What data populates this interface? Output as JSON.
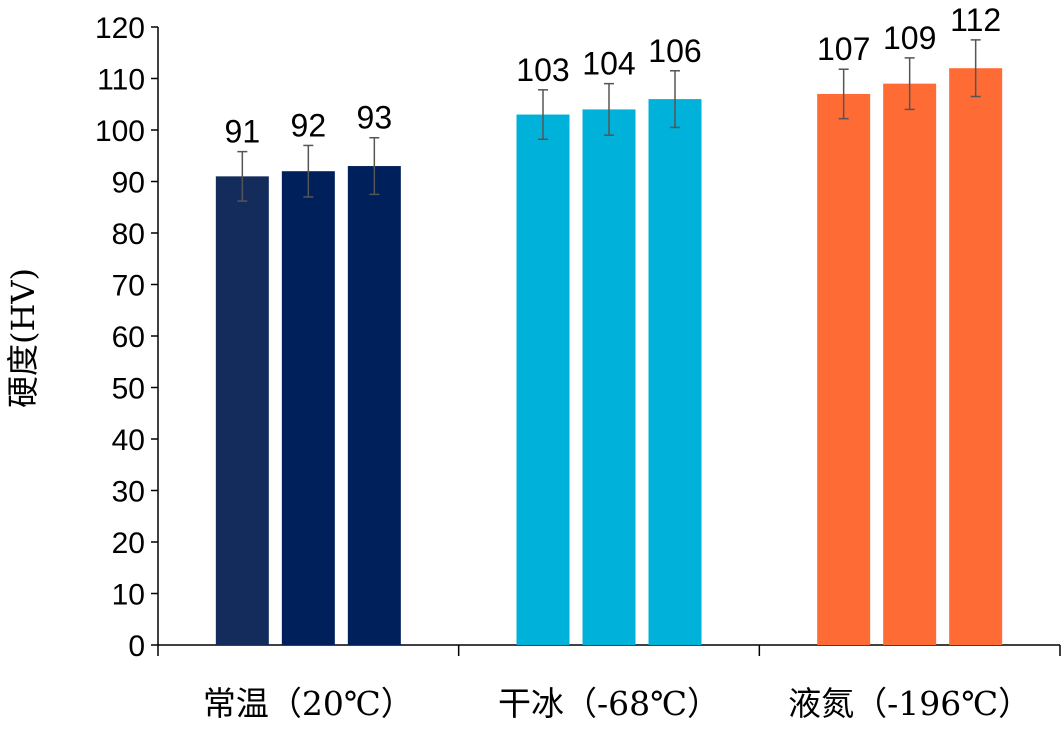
{
  "chart_data": {
    "type": "bar",
    "categories": [
      "常温（20℃）",
      "干冰（-68℃）",
      "液氮（-196℃）"
    ],
    "ylabel": "硬度(HV)",
    "xlabel": "",
    "ylim": [
      0,
      120
    ],
    "ytick_step": 10,
    "grid": false,
    "legend": "none",
    "bars_per_category": 3,
    "values": [
      [
        91,
        92,
        93
      ],
      [
        103,
        104,
        106
      ],
      [
        107,
        109,
        112
      ]
    ],
    "error_bars": [
      [
        4.8,
        5.0,
        5.5
      ],
      [
        4.8,
        5.0,
        5.5
      ],
      [
        4.8,
        5.0,
        5.5
      ]
    ],
    "data_labels": [
      [
        "91",
        "92",
        "93"
      ],
      [
        "103",
        "104",
        "106"
      ],
      [
        "107",
        "109",
        "112"
      ]
    ],
    "colors": [
      [
        "#142c5c",
        "#00205b",
        "#00205b"
      ],
      [
        "#00b2d9",
        "#00b2d9",
        "#00b2d9"
      ],
      [
        "#ff6b35",
        "#ff6b35",
        "#ff6b35"
      ]
    ]
  }
}
